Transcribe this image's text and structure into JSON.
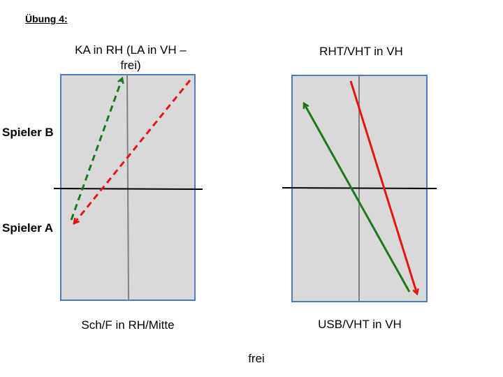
{
  "header": {
    "title": "Übung 4:"
  },
  "players": {
    "upper": "Spieler B",
    "lower": "Spieler A"
  },
  "diagrams": [
    {
      "top_label": "KA in RH (LA in VH – frei)",
      "bottom_label": "Sch/F in RH/Mitte"
    },
    {
      "top_label": "RHT/VHT in VH",
      "bottom_label": "USB/VHT in VH"
    }
  ],
  "footer": {
    "note": "frei"
  }
}
